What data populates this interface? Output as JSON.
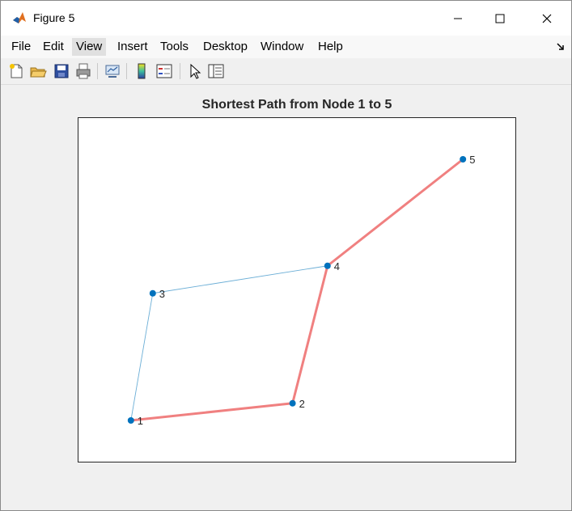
{
  "window": {
    "title": "Figure 5",
    "controls": [
      "minimize",
      "maximize",
      "close"
    ]
  },
  "menu": {
    "items": [
      "File",
      "Edit",
      "View",
      "Insert",
      "Tools",
      "Desktop",
      "Window",
      "Help"
    ],
    "active": "View"
  },
  "toolbar": {
    "icons": [
      "new-figure-icon",
      "open-file-icon",
      "save-icon",
      "print-icon",
      "link-plot-icon",
      "colorbar-icon",
      "legend-icon",
      "edit-plot-pointer-icon",
      "property-inspector-icon"
    ]
  },
  "colors": {
    "edge": "#6baed6",
    "highlight": "#f08080",
    "node": "#0072bd",
    "axes": "#262626"
  },
  "chart_data": {
    "type": "graph",
    "title": "Shortest Path from Node 1 to 5",
    "nodes": [
      {
        "id": "1",
        "x": 0.12,
        "y": 0.12
      },
      {
        "id": "2",
        "x": 0.49,
        "y": 0.17
      },
      {
        "id": "3",
        "x": 0.17,
        "y": 0.49
      },
      {
        "id": "4",
        "x": 0.57,
        "y": 0.57
      },
      {
        "id": "5",
        "x": 0.88,
        "y": 0.88
      }
    ],
    "edges": [
      {
        "from": "1",
        "to": "2",
        "highlighted": true
      },
      {
        "from": "2",
        "to": "4",
        "highlighted": true
      },
      {
        "from": "4",
        "to": "5",
        "highlighted": true
      },
      {
        "from": "1",
        "to": "3",
        "highlighted": false
      },
      {
        "from": "3",
        "to": "4",
        "highlighted": false
      }
    ],
    "xlim": [
      0,
      1
    ],
    "ylim": [
      0,
      1
    ],
    "grid": false,
    "ticks": false
  }
}
